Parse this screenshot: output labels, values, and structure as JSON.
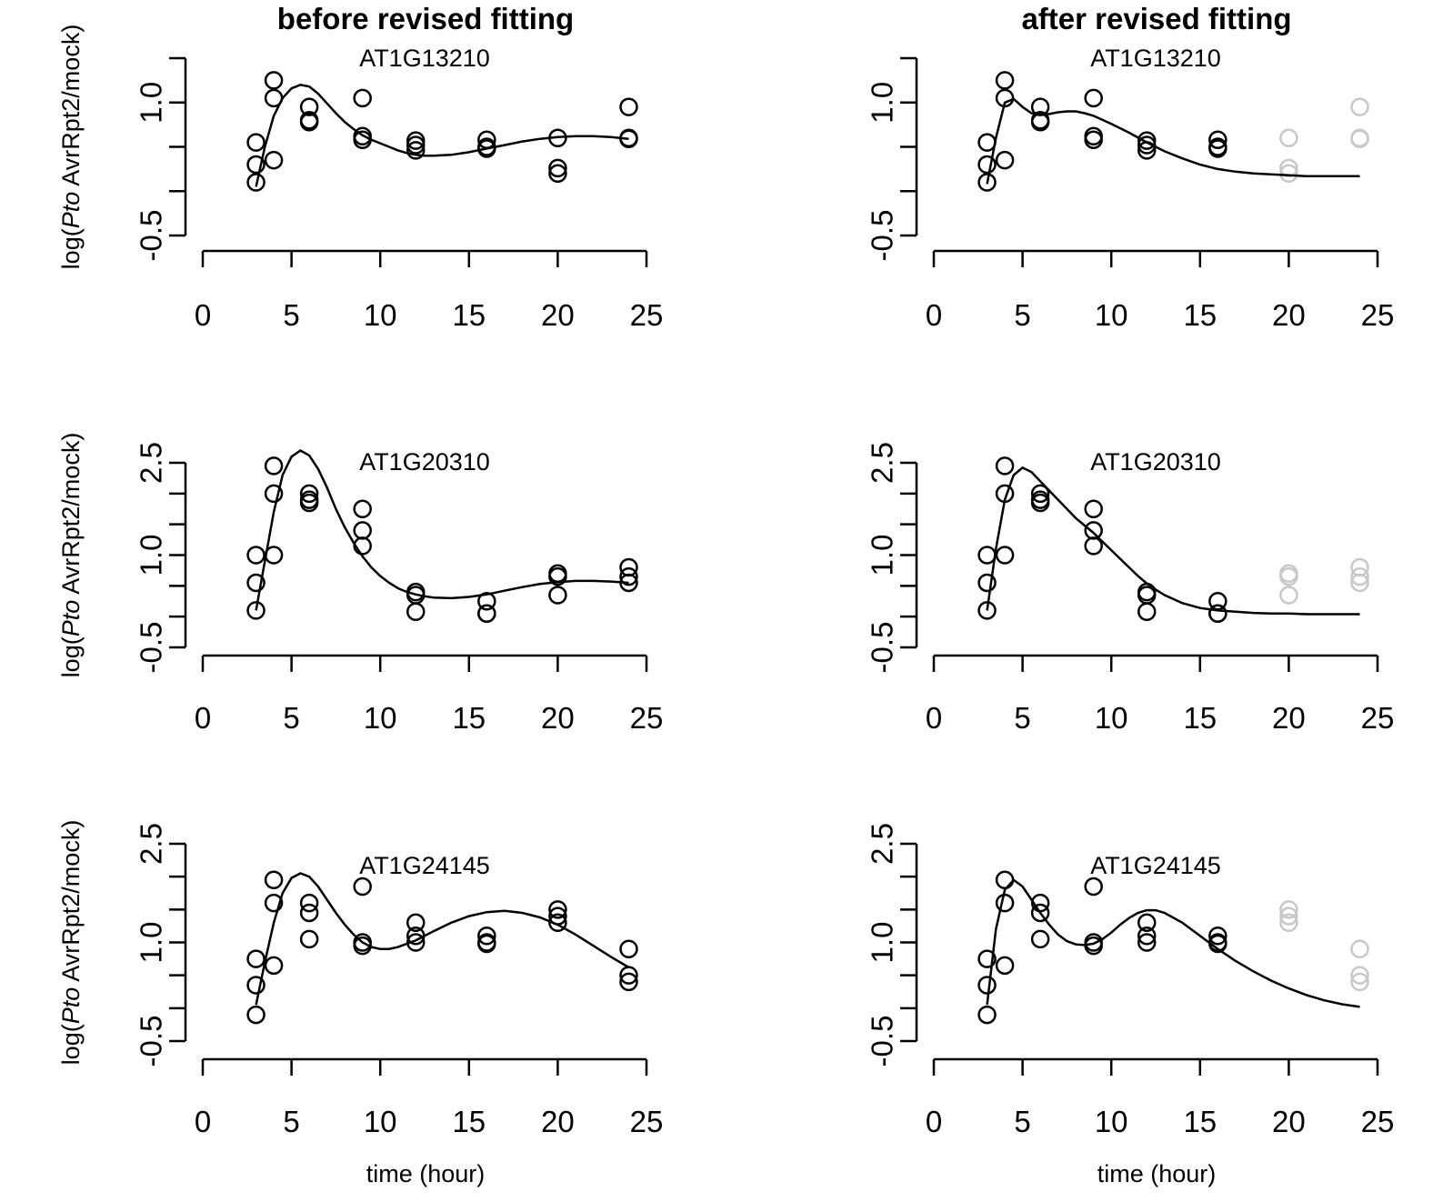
{
  "column_titles": [
    "before revised fitting",
    "after revised fitting"
  ],
  "ylabel_parts": [
    "log(",
    "Pto",
    " AvrRpt2/mock)"
  ],
  "xlabel": "time (hour)",
  "colors": {
    "point": "#000000",
    "excluded_point": "#c8c8c8",
    "line": "#000000"
  },
  "chart_data": [
    {
      "type": "scatter",
      "title": "AT1G13210",
      "column": "before revised fitting",
      "xlim": [
        0,
        25
      ],
      "ylim": [
        -0.5,
        1.5
      ],
      "xticks": [
        0,
        5,
        10,
        15,
        20,
        25
      ],
      "yticks": [
        -0.5,
        1.0
      ],
      "ytick_labels": [
        "-0.5",
        "1.0"
      ],
      "series": [
        {
          "kind": "points",
          "x": [
            3,
            3,
            3,
            4,
            4,
            4,
            6,
            6,
            6,
            9,
            9,
            9,
            12,
            12,
            12,
            16,
            16,
            16,
            20,
            20,
            20,
            24,
            24,
            24
          ],
          "y": [
            0.3,
            0.1,
            0.55,
            1.25,
            1.05,
            0.35,
            0.95,
            0.8,
            0.78,
            1.05,
            0.62,
            0.58,
            0.57,
            0.52,
            0.46,
            0.58,
            0.5,
            0.48,
            0.6,
            0.26,
            0.2,
            0.95,
            0.6,
            0.59
          ]
        },
        {
          "kind": "fit",
          "x": [
            3,
            3.5,
            4,
            4.5,
            5,
            5.5,
            6,
            6.5,
            7,
            7.5,
            8,
            8.5,
            9,
            9.5,
            10,
            10.5,
            11,
            11.5,
            12,
            12.5,
            13,
            14,
            15,
            16,
            17,
            18,
            19,
            20,
            21,
            22,
            23,
            24
          ],
          "y": [
            0.05,
            0.5,
            0.85,
            1.05,
            1.16,
            1.2,
            1.18,
            1.1,
            0.99,
            0.88,
            0.78,
            0.7,
            0.63,
            0.58,
            0.54,
            0.5,
            0.46,
            0.43,
            0.41,
            0.4,
            0.4,
            0.41,
            0.44,
            0.48,
            0.52,
            0.56,
            0.59,
            0.61,
            0.62,
            0.62,
            0.61,
            0.59
          ]
        }
      ]
    },
    {
      "type": "scatter",
      "title": "AT1G13210",
      "column": "after revised fitting",
      "xlim": [
        0,
        25
      ],
      "ylim": [
        -0.5,
        1.5
      ],
      "xticks": [
        0,
        5,
        10,
        15,
        20,
        25
      ],
      "yticks": [
        -0.5,
        1.0
      ],
      "ytick_labels": [
        "-0.5",
        "1.0"
      ],
      "series": [
        {
          "kind": "points",
          "x": [
            3,
            3,
            3,
            4,
            4,
            4,
            6,
            6,
            6,
            9,
            9,
            9,
            12,
            12,
            12,
            16,
            16,
            16
          ],
          "y": [
            0.3,
            0.1,
            0.55,
            1.25,
            1.05,
            0.35,
            0.95,
            0.8,
            0.78,
            1.05,
            0.62,
            0.58,
            0.57,
            0.52,
            0.46,
            0.58,
            0.5,
            0.48
          ]
        },
        {
          "kind": "excluded",
          "x": [
            20,
            20,
            20,
            24,
            24,
            24
          ],
          "y": [
            0.6,
            0.26,
            0.2,
            0.95,
            0.6,
            0.59
          ]
        },
        {
          "kind": "fit",
          "x": [
            3,
            3.5,
            4,
            4.5,
            5,
            5.5,
            6,
            6.5,
            7,
            7.5,
            8,
            8.5,
            9,
            10,
            11,
            12,
            13,
            14,
            15,
            16,
            17,
            18,
            19,
            20,
            21,
            22,
            23,
            24
          ],
          "y": [
            0.08,
            0.6,
            1.0,
            1.04,
            0.95,
            0.88,
            0.86,
            0.87,
            0.89,
            0.9,
            0.9,
            0.88,
            0.85,
            0.76,
            0.66,
            0.55,
            0.45,
            0.37,
            0.3,
            0.25,
            0.22,
            0.2,
            0.19,
            0.18,
            0.17,
            0.17,
            0.17,
            0.17
          ]
        }
      ]
    },
    {
      "type": "scatter",
      "title": "AT1G20310",
      "column": "before revised fitting",
      "xlim": [
        0,
        25
      ],
      "ylim": [
        -0.5,
        2.5
      ],
      "xticks": [
        0,
        5,
        10,
        15,
        20,
        25
      ],
      "yticks": [
        -0.5,
        1.0,
        2.5
      ],
      "ytick_labels": [
        "-0.5",
        "1.0",
        "2.5"
      ],
      "series": [
        {
          "kind": "points",
          "x": [
            3,
            3,
            3,
            4,
            4,
            4,
            6,
            6,
            6,
            9,
            9,
            9,
            12,
            12,
            12,
            16,
            16,
            16,
            20,
            20,
            20,
            24,
            24,
            24
          ],
          "y": [
            1.0,
            0.55,
            0.1,
            2.45,
            2.0,
            1.0,
            2.0,
            1.9,
            1.85,
            1.75,
            1.4,
            1.15,
            0.4,
            0.35,
            0.08,
            0.25,
            0.05,
            0.05,
            0.7,
            0.65,
            0.35,
            0.8,
            0.65,
            0.55
          ]
        },
        {
          "kind": "fit",
          "x": [
            3,
            3.5,
            4,
            4.5,
            5,
            5.5,
            6,
            6.5,
            7,
            7.5,
            8,
            8.5,
            9,
            9.5,
            10,
            10.5,
            11,
            11.5,
            12,
            12.5,
            13,
            14,
            15,
            16,
            17,
            18,
            19,
            20,
            21,
            22,
            23,
            24
          ],
          "y": [
            0.1,
            0.9,
            1.7,
            2.3,
            2.6,
            2.7,
            2.62,
            2.4,
            2.1,
            1.75,
            1.45,
            1.2,
            0.98,
            0.8,
            0.66,
            0.55,
            0.46,
            0.4,
            0.36,
            0.33,
            0.31,
            0.3,
            0.32,
            0.36,
            0.42,
            0.48,
            0.53,
            0.56,
            0.58,
            0.58,
            0.57,
            0.55
          ]
        }
      ]
    },
    {
      "type": "scatter",
      "title": "AT1G20310",
      "column": "after revised fitting",
      "xlim": [
        0,
        25
      ],
      "ylim": [
        -0.5,
        2.5
      ],
      "xticks": [
        0,
        5,
        10,
        15,
        20,
        25
      ],
      "yticks": [
        -0.5,
        1.0,
        2.5
      ],
      "ytick_labels": [
        "-0.5",
        "1.0",
        "2.5"
      ],
      "series": [
        {
          "kind": "points",
          "x": [
            3,
            3,
            3,
            4,
            4,
            4,
            6,
            6,
            6,
            9,
            9,
            9,
            12,
            12,
            12,
            16,
            16,
            16
          ],
          "y": [
            1.0,
            0.55,
            0.1,
            2.45,
            2.0,
            1.0,
            2.0,
            1.9,
            1.85,
            1.75,
            1.4,
            1.15,
            0.4,
            0.35,
            0.08,
            0.25,
            0.05,
            0.05
          ]
        },
        {
          "kind": "excluded",
          "x": [
            20,
            20,
            20,
            24,
            24,
            24
          ],
          "y": [
            0.7,
            0.65,
            0.35,
            0.8,
            0.65,
            0.55
          ]
        },
        {
          "kind": "fit",
          "x": [
            3,
            3.5,
            4,
            4.5,
            5,
            5.5,
            6,
            6.5,
            7,
            7.5,
            8,
            8.5,
            9,
            9.5,
            10,
            10.5,
            11,
            11.5,
            12,
            12.5,
            13,
            14,
            15,
            16,
            17,
            18,
            19,
            20,
            21,
            22,
            23,
            24
          ],
          "y": [
            0.1,
            1.1,
            1.9,
            2.3,
            2.42,
            2.35,
            2.2,
            2.05,
            1.9,
            1.75,
            1.6,
            1.48,
            1.36,
            1.22,
            1.08,
            0.94,
            0.8,
            0.66,
            0.54,
            0.44,
            0.35,
            0.22,
            0.14,
            0.1,
            0.08,
            0.06,
            0.05,
            0.05,
            0.04,
            0.04,
            0.04,
            0.04
          ]
        }
      ]
    },
    {
      "type": "scatter",
      "title": "AT1G24145",
      "column": "before revised fitting",
      "xlim": [
        0,
        25
      ],
      "ylim": [
        -0.5,
        2.5
      ],
      "xticks": [
        0,
        5,
        10,
        15,
        20,
        25
      ],
      "yticks": [
        -0.5,
        1.0,
        2.5
      ],
      "ytick_labels": [
        "-0.5",
        "1.0",
        "2.5"
      ],
      "series": [
        {
          "kind": "points",
          "x": [
            3,
            3,
            3,
            4,
            4,
            4,
            6,
            6,
            6,
            9,
            9,
            9,
            12,
            12,
            12,
            16,
            16,
            16,
            20,
            20,
            20,
            24,
            24,
            24
          ],
          "y": [
            0.75,
            0.35,
            -0.1,
            1.95,
            1.6,
            0.65,
            1.6,
            1.45,
            1.05,
            1.85,
            1.0,
            0.95,
            1.3,
            1.1,
            1.0,
            1.1,
            1.0,
            0.98,
            1.5,
            1.4,
            1.3,
            0.9,
            0.5,
            0.4
          ]
        },
        {
          "kind": "fit",
          "x": [
            3,
            3.5,
            4,
            4.5,
            5,
            5.5,
            6,
            6.5,
            7,
            7.5,
            8,
            8.5,
            9,
            9.5,
            10,
            10.5,
            11,
            11.5,
            12,
            12.5,
            13,
            14,
            15,
            16,
            17,
            18,
            19,
            20,
            21,
            22,
            23,
            24
          ],
          "y": [
            0.05,
            0.7,
            1.3,
            1.75,
            1.98,
            2.05,
            2.0,
            1.85,
            1.65,
            1.45,
            1.27,
            1.12,
            1.0,
            0.93,
            0.9,
            0.9,
            0.93,
            0.98,
            1.03,
            1.1,
            1.17,
            1.3,
            1.4,
            1.46,
            1.48,
            1.45,
            1.38,
            1.27,
            1.12,
            0.95,
            0.78,
            0.62
          ]
        }
      ]
    },
    {
      "type": "scatter",
      "title": "AT1G24145",
      "column": "after revised fitting",
      "xlim": [
        0,
        25
      ],
      "ylim": [
        -0.5,
        2.5
      ],
      "xticks": [
        0,
        5,
        10,
        15,
        20,
        25
      ],
      "yticks": [
        -0.5,
        1.0,
        2.5
      ],
      "ytick_labels": [
        "-0.5",
        "1.0",
        "2.5"
      ],
      "series": [
        {
          "kind": "points",
          "x": [
            3,
            3,
            3,
            4,
            4,
            4,
            6,
            6,
            6,
            9,
            9,
            9,
            12,
            12,
            12,
            16,
            16,
            16
          ],
          "y": [
            0.75,
            0.35,
            -0.1,
            1.95,
            1.6,
            0.65,
            1.6,
            1.45,
            1.05,
            1.85,
            1.0,
            0.95,
            1.3,
            1.1,
            1.0,
            1.1,
            1.0,
            0.98
          ]
        },
        {
          "kind": "excluded",
          "x": [
            20,
            20,
            20,
            24,
            24,
            24
          ],
          "y": [
            1.5,
            1.4,
            1.3,
            0.9,
            0.5,
            0.4
          ]
        },
        {
          "kind": "fit",
          "x": [
            3,
            3.5,
            4,
            4.5,
            5,
            5.5,
            6,
            6.5,
            7,
            7.5,
            8,
            8.5,
            9,
            9.5,
            10,
            10.5,
            11,
            11.5,
            12,
            12.5,
            13,
            14,
            15,
            16,
            17,
            18,
            19,
            20,
            21,
            22,
            23,
            24
          ],
          "y": [
            0.05,
            1.2,
            1.8,
            1.95,
            1.85,
            1.65,
            1.45,
            1.27,
            1.12,
            1.02,
            0.97,
            0.96,
            0.98,
            1.05,
            1.15,
            1.27,
            1.37,
            1.45,
            1.49,
            1.49,
            1.45,
            1.3,
            1.1,
            0.9,
            0.72,
            0.56,
            0.42,
            0.3,
            0.2,
            0.12,
            0.06,
            0.02
          ]
        }
      ]
    }
  ]
}
